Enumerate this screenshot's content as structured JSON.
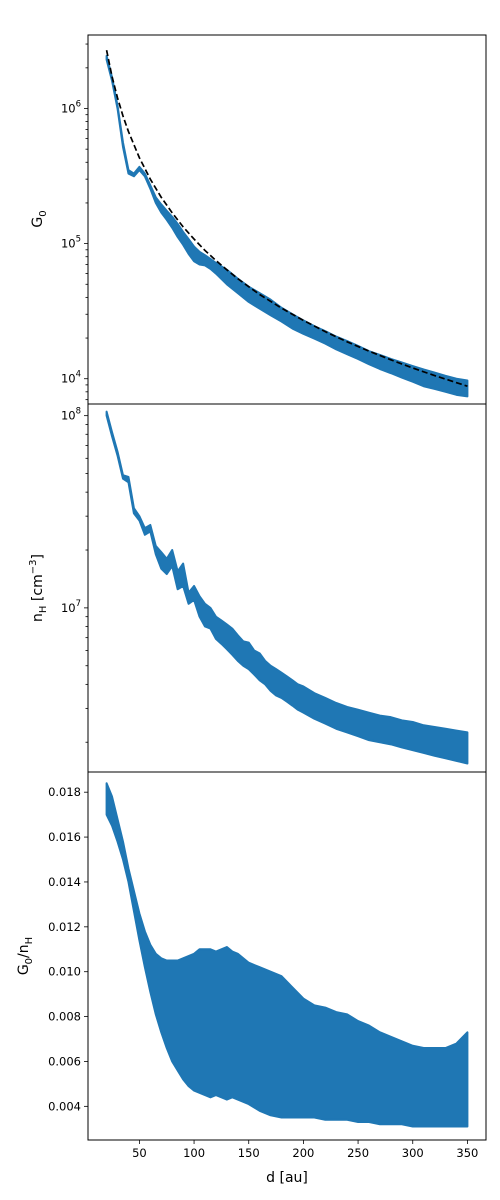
{
  "chart_data": [
    {
      "type": "area",
      "ylabel": "G",
      "ylabel_sub": "0",
      "yscale": "log",
      "ylim": [
        6500,
        3500000
      ],
      "xlim": [
        3,
        367
      ],
      "yticks": [
        {
          "value": 10000,
          "base": "10",
          "exp": "4"
        },
        {
          "value": 100000,
          "base": "10",
          "exp": "5"
        },
        {
          "value": 1000000,
          "base": "10",
          "exp": "6"
        }
      ],
      "fill_color": "#1f77b4",
      "series": [
        {
          "kind": "band",
          "x": [
            20,
            25,
            30,
            35,
            40,
            45,
            50,
            55,
            60,
            65,
            70,
            75,
            80,
            85,
            90,
            95,
            100,
            105,
            110,
            115,
            120,
            130,
            140,
            150,
            160,
            170,
            180,
            190,
            200,
            210,
            220,
            230,
            240,
            250,
            260,
            270,
            280,
            290,
            300,
            310,
            320,
            330,
            340,
            350
          ],
          "upper": [
            2450000,
            1700000,
            1050000,
            560000,
            350000,
            330000,
            370000,
            330000,
            270000,
            220000,
            195000,
            175000,
            158000,
            140000,
            122000,
            108000,
            95000,
            87000,
            82000,
            77000,
            72000,
            64000,
            55000,
            48000,
            43000,
            38500,
            33500,
            30000,
            27000,
            24500,
            22500,
            20500,
            19000,
            17500,
            16000,
            15000,
            14000,
            13200,
            12400,
            11700,
            11100,
            10500,
            10000,
            9700
          ],
          "lower": [
            2300000,
            1600000,
            1000000,
            520000,
            330000,
            315000,
            350000,
            315000,
            255000,
            200000,
            170000,
            150000,
            131000,
            112000,
            98000,
            84000,
            74000,
            70000,
            69000,
            65000,
            60000,
            50000,
            43000,
            37000,
            33000,
            29500,
            26500,
            23500,
            21500,
            19800,
            18200,
            16500,
            15200,
            14000,
            12800,
            11800,
            11000,
            10200,
            9500,
            8800,
            8400,
            8000,
            7600,
            7400
          ]
        },
        {
          "kind": "line",
          "style": "dashed",
          "color": "#000000",
          "x": [
            20,
            25,
            30,
            35,
            40,
            50,
            60,
            70,
            80,
            90,
            100,
            110,
            120,
            130,
            140,
            150,
            160,
            180,
            200,
            220,
            240,
            260,
            280,
            300,
            320,
            340,
            350
          ],
          "values": [
            2700000,
            1720000,
            1200000,
            880000,
            675000,
            432000,
            300000,
            220000,
            169000,
            133000,
            108000,
            89000,
            75000,
            64000,
            55000,
            48000,
            42000,
            33300,
            27000,
            22300,
            18750,
            16000,
            13800,
            12000,
            10550,
            9350,
            8800
          ]
        }
      ]
    },
    {
      "type": "area",
      "ylabel": "n",
      "ylabel_sub": "H",
      "ylabel_unit": " [cm",
      "ylabel_sup": "−3",
      "ylabel_close": "]",
      "yscale": "log",
      "ylim": [
        1400000,
        115000000
      ],
      "xlim": [
        3,
        367
      ],
      "yticks": [
        {
          "value": 10000000,
          "base": "10",
          "exp": "7"
        },
        {
          "value": 100000000,
          "base": "10",
          "exp": "8"
        }
      ],
      "fill_color": "#1f77b4",
      "series": [
        {
          "kind": "band",
          "x": [
            20,
            25,
            30,
            35,
            40,
            45,
            50,
            55,
            60,
            65,
            70,
            75,
            80,
            85,
            90,
            95,
            100,
            105,
            110,
            115,
            120,
            125,
            130,
            135,
            140,
            145,
            150,
            155,
            160,
            165,
            170,
            175,
            180,
            185,
            190,
            195,
            200,
            210,
            220,
            230,
            240,
            250,
            260,
            270,
            280,
            290,
            300,
            310,
            320,
            330,
            340,
            350
          ],
          "upper": [
            105000000,
            82000000,
            65000000,
            49000000,
            48000000,
            33000000,
            30000000,
            26000000,
            27000000,
            21000000,
            19500000,
            18000000,
            20000000,
            15500000,
            17000000,
            12000000,
            13000000,
            11500000,
            10500000,
            10000000,
            9000000,
            8600000,
            8200000,
            7800000,
            7200000,
            6700000,
            6600000,
            6000000,
            5800000,
            5300000,
            5000000,
            4800000,
            4600000,
            4400000,
            4200000,
            4000000,
            3900000,
            3600000,
            3400000,
            3200000,
            3050000,
            2950000,
            2850000,
            2750000,
            2700000,
            2600000,
            2550000,
            2450000,
            2400000,
            2350000,
            2300000,
            2250000
          ],
          "lower": [
            100000000,
            78000000,
            62000000,
            47000000,
            45000000,
            31000000,
            28500000,
            24000000,
            25000000,
            19000000,
            16000000,
            15000000,
            16500000,
            12500000,
            13000000,
            10500000,
            11000000,
            9000000,
            8000000,
            7800000,
            6900000,
            6500000,
            6100000,
            5700000,
            5300000,
            5000000,
            4800000,
            4500000,
            4200000,
            4000000,
            3700000,
            3500000,
            3400000,
            3250000,
            3100000,
            2950000,
            2850000,
            2650000,
            2500000,
            2350000,
            2250000,
            2150000,
            2050000,
            2000000,
            1950000,
            1880000,
            1820000,
            1760000,
            1700000,
            1650000,
            1600000,
            1550000
          ]
        }
      ]
    },
    {
      "type": "area",
      "ylabel": "G",
      "ylabel_sub": "0",
      "ylabel_mid": "/n",
      "ylabel_sub2": "H",
      "yscale": "linear",
      "ylim": [
        0.0025,
        0.0189
      ],
      "xlim": [
        3,
        367
      ],
      "xlabel": "d [au]",
      "yticks": [
        {
          "value": 0.004,
          "label": "0.004"
        },
        {
          "value": 0.006,
          "label": "0.006"
        },
        {
          "value": 0.008,
          "label": "0.008"
        },
        {
          "value": 0.01,
          "label": "0.010"
        },
        {
          "value": 0.012,
          "label": "0.012"
        },
        {
          "value": 0.014,
          "label": "0.014"
        },
        {
          "value": 0.016,
          "label": "0.016"
        },
        {
          "value": 0.018,
          "label": "0.018"
        }
      ],
      "xticks": [
        {
          "value": 50,
          "label": "50"
        },
        {
          "value": 100,
          "label": "100"
        },
        {
          "value": 150,
          "label": "150"
        },
        {
          "value": 200,
          "label": "200"
        },
        {
          "value": 250,
          "label": "250"
        },
        {
          "value": 300,
          "label": "300"
        },
        {
          "value": 350,
          "label": "350"
        }
      ],
      "fill_color": "#1f77b4",
      "series": [
        {
          "kind": "band",
          "x": [
            20,
            25,
            30,
            35,
            40,
            45,
            50,
            55,
            60,
            65,
            70,
            75,
            80,
            85,
            90,
            95,
            100,
            105,
            110,
            115,
            120,
            125,
            130,
            135,
            140,
            150,
            160,
            170,
            180,
            190,
            200,
            210,
            220,
            230,
            240,
            250,
            260,
            270,
            280,
            290,
            300,
            310,
            320,
            330,
            340,
            350
          ],
          "upper": [
            0.0184,
            0.0178,
            0.0168,
            0.0158,
            0.0146,
            0.0136,
            0.0126,
            0.0118,
            0.0112,
            0.0108,
            0.0106,
            0.0105,
            0.0105,
            0.0105,
            0.0106,
            0.0107,
            0.0108,
            0.011,
            0.011,
            0.011,
            0.0109,
            0.011,
            0.0111,
            0.0109,
            0.0108,
            0.0104,
            0.0102,
            0.01,
            0.0098,
            0.0093,
            0.0088,
            0.0085,
            0.0084,
            0.0082,
            0.0081,
            0.0078,
            0.0076,
            0.0073,
            0.0071,
            0.0069,
            0.0067,
            0.0066,
            0.0066,
            0.0066,
            0.0068,
            0.0073
          ],
          "lower": [
            0.017,
            0.0165,
            0.0158,
            0.015,
            0.014,
            0.0127,
            0.0114,
            0.0102,
            0.0091,
            0.0081,
            0.0073,
            0.0066,
            0.006,
            0.0056,
            0.0052,
            0.0049,
            0.0047,
            0.0046,
            0.0045,
            0.0044,
            0.0045,
            0.0044,
            0.0043,
            0.0044,
            0.0043,
            0.0041,
            0.0038,
            0.0036,
            0.0035,
            0.0035,
            0.0035,
            0.0035,
            0.0034,
            0.0034,
            0.0034,
            0.0033,
            0.0033,
            0.0032,
            0.0032,
            0.0032,
            0.0031,
            0.0031,
            0.0031,
            0.0031,
            0.0031,
            0.0031
          ]
        }
      ]
    }
  ]
}
